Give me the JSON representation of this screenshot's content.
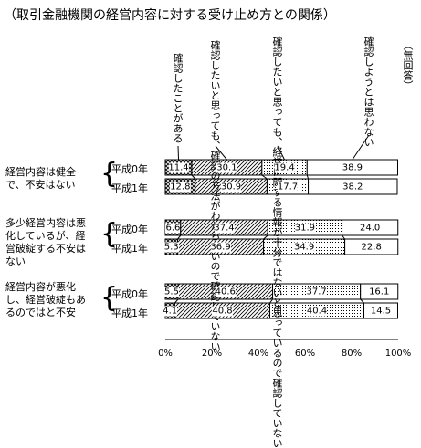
{
  "title": "（取引金融機関の経営内容に対する受け止め方との関係）",
  "chart_data": {
    "type": "bar",
    "orientation": "horizontal-stacked-100",
    "legend": [
      {
        "name": "確認したことがある",
        "pattern": "cross"
      },
      {
        "name": "確認したいと思っても、確認の方法がわからないので確認していない",
        "pattern": "diagonal"
      },
      {
        "name": "確認したいと思っても、経営に関する情報が十分ではないと思っているので確認していない",
        "pattern": "dots"
      },
      {
        "name": "確認しようとは思わない",
        "pattern": "white"
      },
      {
        "name": "（無回答）",
        "pattern": "white"
      }
    ],
    "groups": [
      {
        "label": "経営内容は健全で、不安はない",
        "rows": [
          {
            "year": "平成0年",
            "values": [
              11.4,
              30.1,
              19.4,
              38.9
            ]
          },
          {
            "year": "平成1年",
            "values": [
              12.8,
              30.9,
              17.7,
              38.2
            ]
          }
        ]
      },
      {
        "label": "多少経営内容は悪化しているが、経営破綻する不安はない",
        "rows": [
          {
            "year": "平成0年",
            "values": [
              6.6,
              37.4,
              31.9,
              24.0
            ]
          },
          {
            "year": "平成1年",
            "values": [
              5.3,
              36.9,
              34.9,
              22.8
            ]
          }
        ]
      },
      {
        "label": "経営内容が悪化し、経営破綻もあるのではと不安",
        "rows": [
          {
            "year": "平成0年",
            "values": [
              5.5,
              40.6,
              37.7,
              16.1
            ]
          },
          {
            "year": "平成1年",
            "values": [
              4.1,
              40.8,
              40.4,
              14.5
            ]
          }
        ]
      }
    ],
    "x_ticks": [
      "0%",
      "20%",
      "40%",
      "60%",
      "80%",
      "100%"
    ],
    "xlim": [
      0,
      100
    ]
  }
}
